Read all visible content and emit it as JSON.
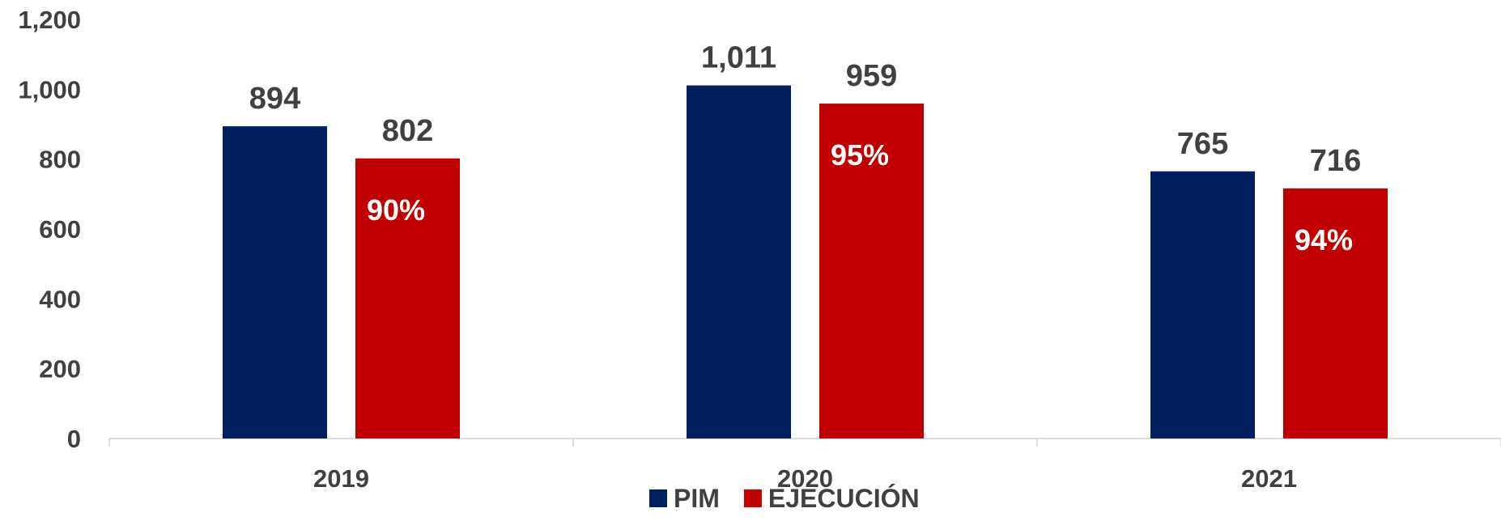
{
  "chart_data": {
    "type": "bar",
    "categories": [
      "2019",
      "2020",
      "2021"
    ],
    "series": [
      {
        "name": "PIM",
        "values": [
          894,
          1011,
          765
        ],
        "color": "#002060",
        "value_labels": [
          "894",
          "1,011",
          "765"
        ]
      },
      {
        "name": "EJECUCIÓN",
        "values": [
          802,
          959,
          716
        ],
        "color": "#C00000",
        "value_labels": [
          "802",
          "959",
          "716"
        ],
        "inner_labels": [
          "90%",
          "95%",
          "94%"
        ]
      }
    ],
    "ylim": [
      0,
      1200
    ],
    "yticks": [
      "0",
      "200",
      "400",
      "600",
      "800",
      "1,000",
      "1,200"
    ],
    "ytick_values": [
      0,
      200,
      400,
      600,
      800,
      1000,
      1200
    ],
    "grid": false,
    "legend": {
      "position": "bottom-center",
      "items": [
        "PIM",
        "EJECUCIÓN"
      ]
    }
  }
}
